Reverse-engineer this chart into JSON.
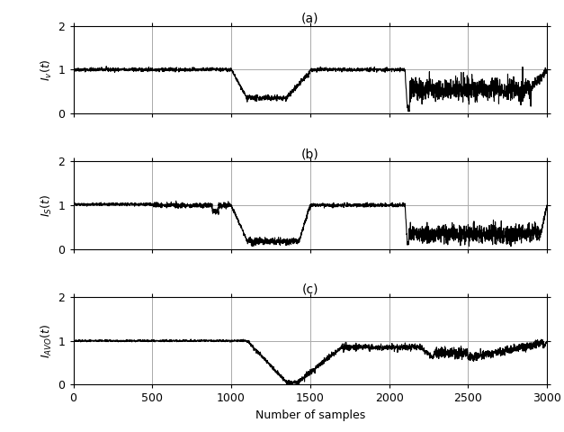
{
  "title_a": "(a)",
  "title_b": "(b)",
  "title_c": "(c)",
  "xlabel": "Number of samples",
  "ylabel_a": "$I_v(t)$",
  "ylabel_b": "$I_S(t)$",
  "ylabel_c": "$I_{AVO}(t)$",
  "xlim": [
    0,
    3000
  ],
  "ylim": [
    0,
    2
  ],
  "yticks": [
    0,
    1,
    2
  ],
  "xticks": [
    0,
    500,
    1000,
    1500,
    2000,
    2500,
    3000
  ],
  "vlines": [
    500,
    1000,
    1500,
    2000,
    2500
  ],
  "hline": 1.0,
  "line_color": "black",
  "line_width": 0.8,
  "vline_color": "#aaaaaa",
  "hline_color": "#aaaaaa",
  "seed": 42,
  "title_fontsize": 10,
  "label_fontsize": 9,
  "tick_fontsize": 9
}
